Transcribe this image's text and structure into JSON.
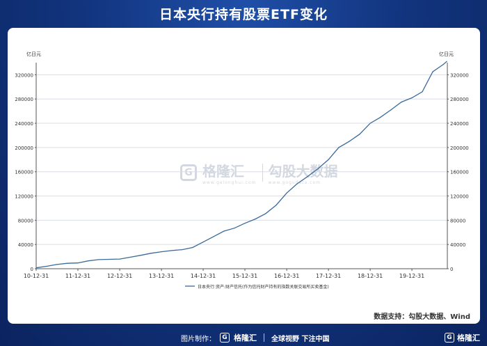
{
  "page": {
    "title": "日本央行持有股票ETF变化",
    "source": "数据支持：勾股大数据、Wind"
  },
  "watermark": {
    "left_logo_letter": "G",
    "left_name": "格隆汇",
    "left_site": "www.gelonghui.com",
    "right_name": "勾股大数据",
    "right_site": "www.gogudata.com"
  },
  "footer": {
    "credit_label": "图片制作：",
    "logo_letter": "G",
    "brand": "格隆汇",
    "slogan": "全球视野 下注中国",
    "corner_brand": "格隆汇"
  },
  "colors": {
    "line": "#3a6a9a",
    "grid": "#d8dde6",
    "axis": "#555555",
    "header_bg": "#12357f"
  },
  "chart_data": {
    "type": "line",
    "title": "日本央行持有股票ETF变化",
    "ylabel_left": "亿日元",
    "ylabel_right": "亿日元",
    "ylim": [
      0,
      340000
    ],
    "yticks": [
      0,
      40000,
      80000,
      120000,
      160000,
      200000,
      240000,
      280000,
      320000
    ],
    "xticks": [
      "10-12-31",
      "11-12-31",
      "12-12-31",
      "13-12-31",
      "14-12-31",
      "15-12-31",
      "16-12-31",
      "17-12-31",
      "18-12-31",
      "19-12-31"
    ],
    "grid": true,
    "legend_position": "bottom",
    "series": [
      {
        "name": "日本央行:资产:财产信托(作为信托财产持有的指数关联交易所买卖基金)",
        "x": [
          "2010-12-31",
          "2011-03-31",
          "2011-06-30",
          "2011-09-30",
          "2011-12-31",
          "2012-03-31",
          "2012-06-30",
          "2012-09-30",
          "2012-12-31",
          "2013-03-31",
          "2013-06-30",
          "2013-09-30",
          "2013-12-31",
          "2014-03-31",
          "2014-06-30",
          "2014-09-30",
          "2014-12-31",
          "2015-03-31",
          "2015-06-30",
          "2015-09-30",
          "2015-12-31",
          "2016-03-31",
          "2016-06-30",
          "2016-09-30",
          "2016-12-31",
          "2017-03-31",
          "2017-06-30",
          "2017-09-30",
          "2017-12-31",
          "2018-03-31",
          "2018-06-30",
          "2018-09-30",
          "2018-12-31",
          "2019-03-31",
          "2019-06-30",
          "2019-09-30",
          "2019-12-31",
          "2020-03-31",
          "2020-06-30",
          "2020-09-30",
          "2020-10-31"
        ],
        "values": [
          1500,
          4000,
          7000,
          9000,
          9500,
          13000,
          15000,
          15500,
          16000,
          19000,
          22000,
          25500,
          28000,
          30000,
          31500,
          35000,
          44000,
          53000,
          62000,
          67000,
          75000,
          82000,
          91000,
          105000,
          125000,
          140000,
          152000,
          165000,
          180000,
          200000,
          210000,
          222000,
          240000,
          250000,
          262000,
          275000,
          282000,
          292000,
          325000,
          337000,
          342000
        ]
      }
    ]
  }
}
